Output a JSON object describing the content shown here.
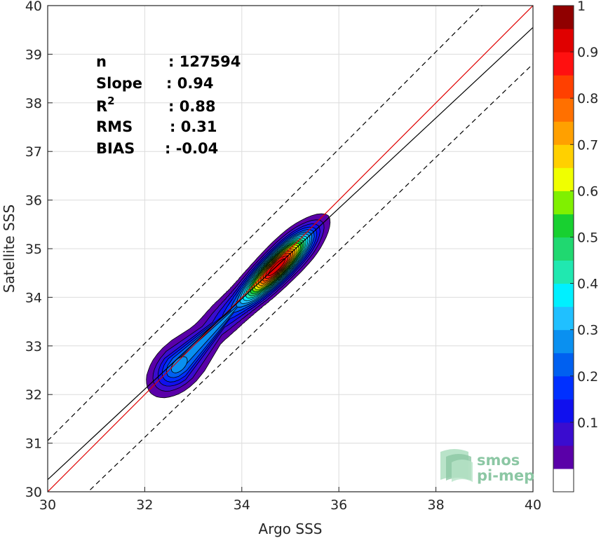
{
  "chart_data": {
    "type": "contour",
    "xlabel": "Argo SSS",
    "ylabel": "Satellite SSS",
    "xlim": [
      30,
      40
    ],
    "ylim": [
      30,
      40
    ],
    "xticks": [
      "30",
      "32",
      "34",
      "36",
      "38",
      "40"
    ],
    "yticks": [
      "30",
      "31",
      "32",
      "33",
      "34",
      "35",
      "36",
      "37",
      "38",
      "39",
      "40"
    ],
    "grid": true,
    "stats": [
      {
        "label": "n",
        "value": ": 127594"
      },
      {
        "label": "Slope",
        "value": ": 0.94"
      },
      {
        "label": "R",
        "sup": "2",
        "value": ": 0.88"
      },
      {
        "label": "RMS",
        "value": ": 0.31"
      },
      {
        "label": "BIAS",
        "value": ": -0.04"
      }
    ],
    "lines": [
      {
        "role": "one-to-one",
        "color": "#e00000",
        "style": "solid",
        "intercept": 0,
        "slope": 1
      },
      {
        "role": "regression",
        "color": "#000000",
        "style": "solid",
        "x": [
          30,
          40
        ],
        "y": [
          30.25,
          39.55
        ]
      },
      {
        "role": "upper-bound",
        "color": "#000000",
        "style": "dashed",
        "x": [
          30,
          40
        ],
        "y": [
          31.05,
          41.05
        ]
      },
      {
        "role": "lower-bound",
        "color": "#000000",
        "style": "dashed",
        "x": [
          30,
          40
        ],
        "y": [
          29.2,
          38.8
        ]
      }
    ],
    "density_peaks": [
      {
        "x": 34.7,
        "y": 34.6,
        "peak": 1.0
      },
      {
        "x": 32.7,
        "y": 32.6,
        "peak": 0.33
      }
    ],
    "contour_levels": [
      0.05,
      0.1,
      0.15,
      0.2,
      0.25,
      0.3,
      0.35,
      0.4,
      0.45,
      0.5,
      0.55,
      0.6,
      0.65,
      0.7,
      0.75,
      0.8,
      0.85,
      0.9,
      0.95
    ],
    "colorbar": {
      "ticks": [
        "0.1",
        "0.2",
        "0.3",
        "0.4",
        "0.5",
        "0.6",
        "0.7",
        "0.8",
        "0.9",
        "1"
      ],
      "tick_values": [
        0.1,
        0.2,
        0.3,
        0.4,
        0.5,
        0.6,
        0.7,
        0.8,
        0.9,
        1.0
      ],
      "range": [
        0,
        1
      ],
      "colors": [
        "#ffffff",
        "#5a00a8",
        "#3a0ccf",
        "#1010ee",
        "#0030ff",
        "#0060f0",
        "#0a90f0",
        "#20c0ff",
        "#00f0ff",
        "#20e8b0",
        "#20d870",
        "#18d030",
        "#80f000",
        "#f0ff00",
        "#ffd000",
        "#ffa000",
        "#ff7000",
        "#ff4000",
        "#ff1010",
        "#e00000",
        "#900000"
      ]
    }
  },
  "watermark": {
    "line1": "smos",
    "line2": "pi-mep"
  }
}
